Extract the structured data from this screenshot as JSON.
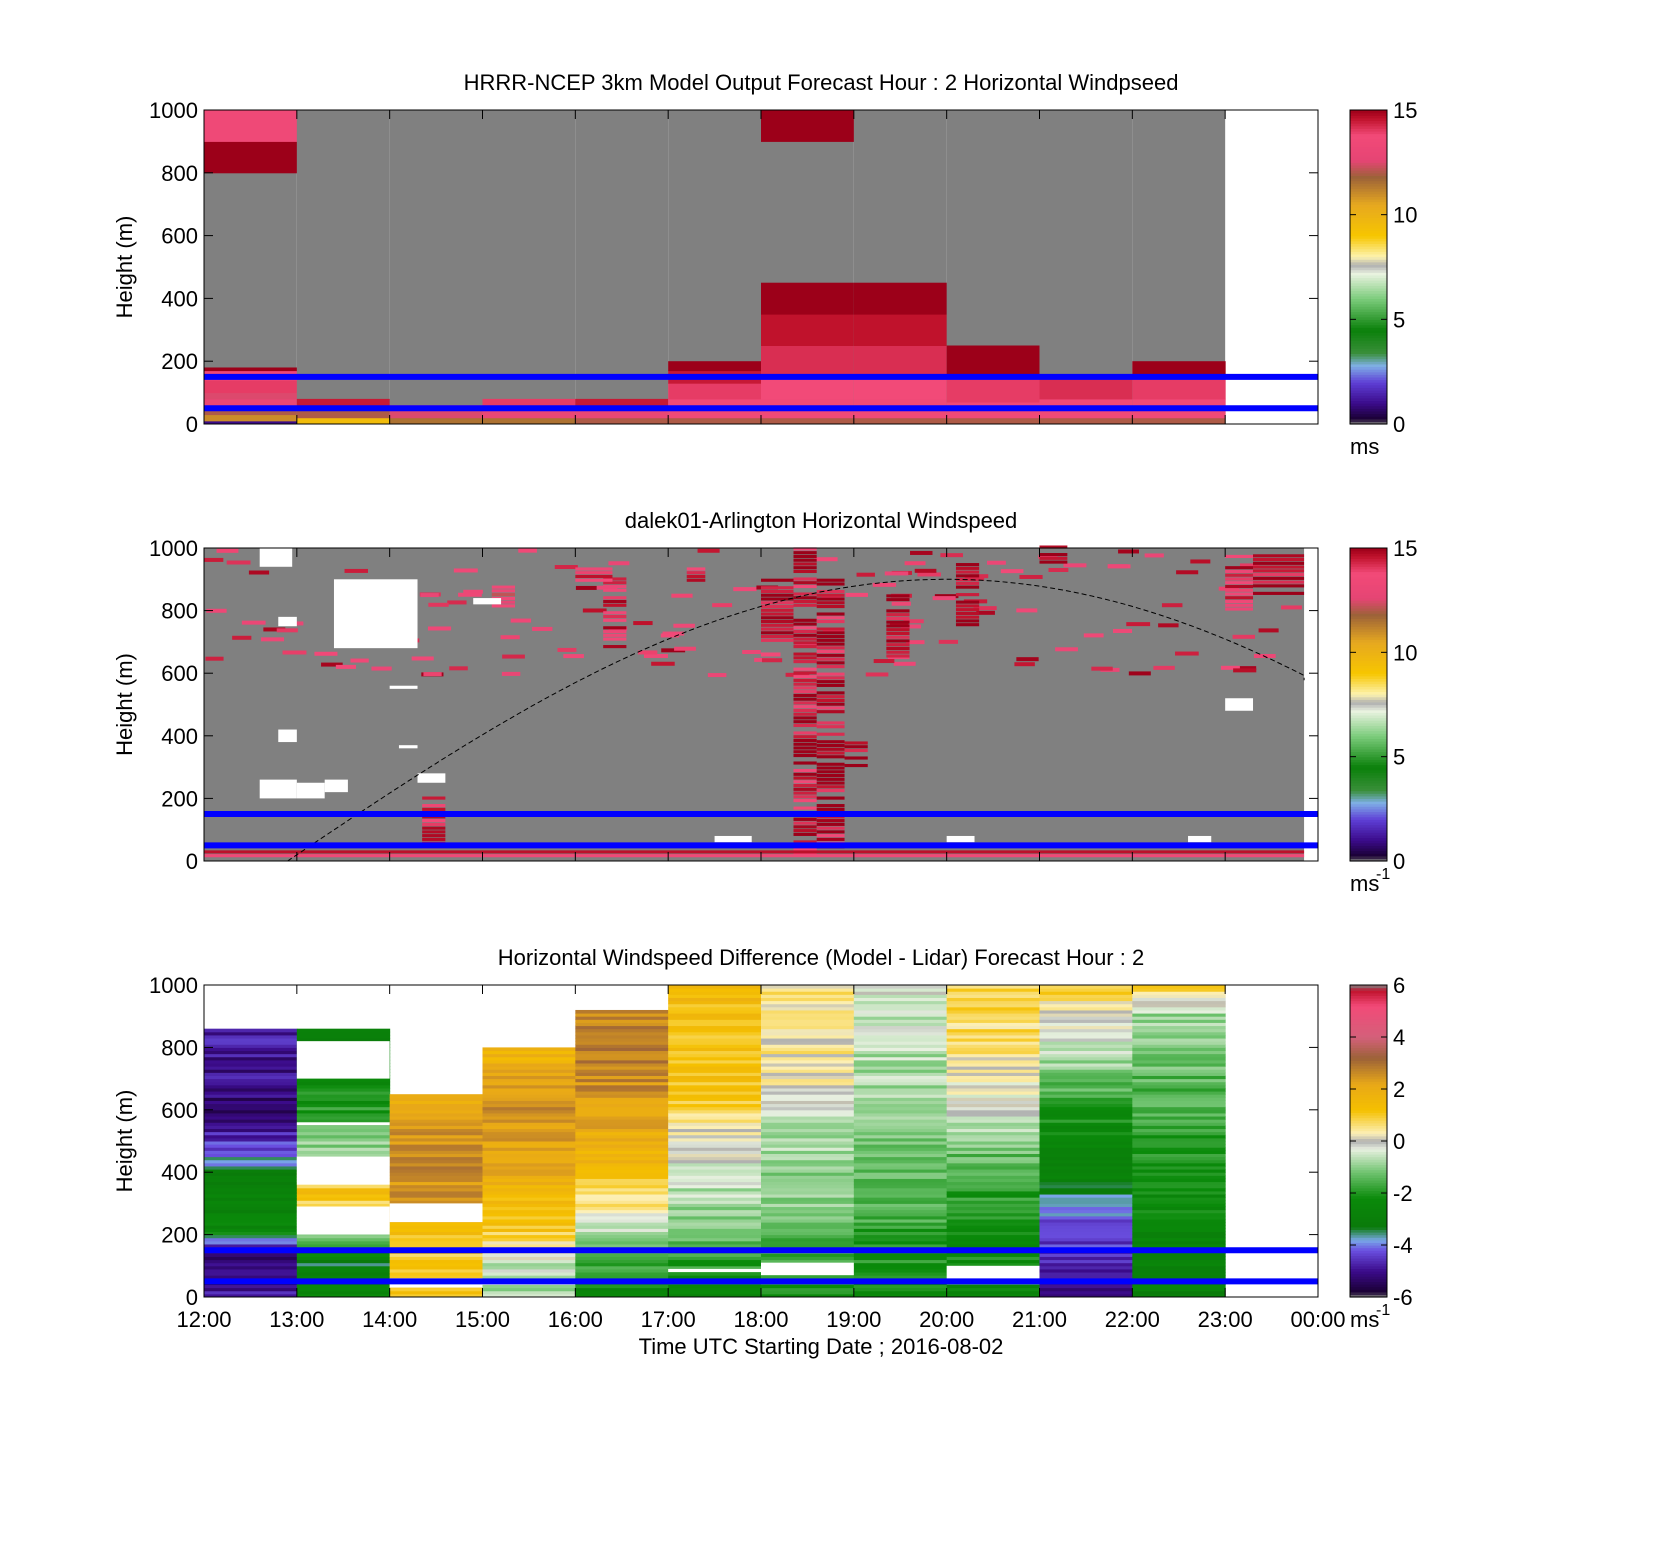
{
  "chart_data": [
    {
      "type": "heatmap",
      "title": "HRRR-NCEP 3km Model Output   Forecast Hour : 2 Horizontal Windpseed",
      "ylabel": "Height (m)",
      "xlabel": "",
      "xlim": [
        12,
        24
      ],
      "ylim": [
        0,
        1000
      ],
      "yticks": [
        "0",
        "200",
        "400",
        "600",
        "800",
        "1000"
      ],
      "xticks": [
        "12:00",
        "13:00",
        "14:00",
        "15:00",
        "16:00",
        "17:00",
        "18:00",
        "19:00",
        "20:00",
        "21:00",
        "22:00",
        "23:00",
        "00:00"
      ],
      "show_xtick_labels": false,
      "colorbar": {
        "ticks": [
          "0",
          "5",
          "10",
          "15"
        ],
        "range": [
          0,
          15
        ],
        "unit": "ms",
        "unit_sup": "",
        "map": "wind"
      },
      "reference_lines": [
        {
          "height": 150,
          "color": "#0000ff"
        },
        {
          "height": 50,
          "color": "#0000ff"
        }
      ],
      "hours": [
        {
          "start": 12,
          "top": 1000,
          "layers": [
            [
              0,
              10,
              1
            ],
            [
              10,
              30,
              11
            ],
            [
              30,
              50,
              12
            ],
            [
              50,
              80,
              13
            ],
            [
              80,
              100,
              12.5
            ],
            [
              100,
              140,
              14
            ],
            [
              140,
              170,
              13.5
            ],
            [
              170,
              180,
              15
            ],
            [
              800,
              900,
              15
            ],
            [
              900,
              1000,
              13.5
            ]
          ]
        },
        {
          "start": 13,
          "top": 1000,
          "layers": [
            [
              0,
              20,
              9.5
            ],
            [
              20,
              50,
              12
            ],
            [
              50,
              80,
              14.5
            ]
          ]
        },
        {
          "start": 14,
          "top": 1000,
          "layers": [
            [
              0,
              20,
              11.5
            ],
            [
              20,
              50,
              12.5
            ],
            [
              50,
              60,
              13.5
            ]
          ]
        },
        {
          "start": 15,
          "top": 1000,
          "layers": [
            [
              0,
              20,
              11.5
            ],
            [
              20,
              50,
              13
            ],
            [
              50,
              80,
              14
            ]
          ]
        },
        {
          "start": 16,
          "top": 1000,
          "layers": [
            [
              0,
              20,
              12
            ],
            [
              20,
              50,
              13
            ],
            [
              50,
              80,
              14.5
            ]
          ]
        },
        {
          "start": 17,
          "top": 1000,
          "layers": [
            [
              0,
              20,
              12
            ],
            [
              20,
              80,
              13.5
            ],
            [
              80,
              130,
              14
            ],
            [
              130,
              170,
              14.5
            ],
            [
              170,
              200,
              15
            ]
          ]
        },
        {
          "start": 18,
          "top": 1000,
          "layers": [
            [
              0,
              20,
              12
            ],
            [
              20,
              80,
              13.5
            ],
            [
              80,
              150,
              13.8
            ],
            [
              150,
              250,
              14.2
            ],
            [
              250,
              350,
              14.6
            ],
            [
              350,
              450,
              15
            ],
            [
              900,
              1000,
              15
            ]
          ]
        },
        {
          "start": 19,
          "top": 1000,
          "layers": [
            [
              0,
              20,
              12
            ],
            [
              20,
              80,
              13.5
            ],
            [
              80,
              150,
              13.8
            ],
            [
              150,
              250,
              14.2
            ],
            [
              250,
              350,
              14.6
            ],
            [
              350,
              450,
              15
            ]
          ]
        },
        {
          "start": 20,
          "top": 1000,
          "layers": [
            [
              0,
              20,
              12
            ],
            [
              20,
              70,
              13.5
            ],
            [
              70,
              150,
              14
            ],
            [
              150,
              250,
              15
            ]
          ]
        },
        {
          "start": 21,
          "top": 1000,
          "layers": [
            [
              0,
              20,
              12
            ],
            [
              20,
              80,
              13.5
            ],
            [
              80,
              150,
              14.2
            ]
          ]
        },
        {
          "start": 22,
          "top": 1000,
          "layers": [
            [
              0,
              20,
              12
            ],
            [
              20,
              80,
              13.5
            ],
            [
              80,
              150,
              14
            ],
            [
              150,
              200,
              15
            ]
          ]
        }
      ],
      "fill_value": null
    },
    {
      "type": "heatmap",
      "title": "dalek01-Arlington  Horizontal Windspeed",
      "ylabel": "Height (m)",
      "xlabel": "",
      "xlim": [
        12,
        24
      ],
      "ylim": [
        0,
        1000
      ],
      "yticks": [
        "0",
        "200",
        "400",
        "600",
        "800",
        "1000"
      ],
      "xticks": [
        "12:00",
        "13:00",
        "14:00",
        "15:00",
        "16:00",
        "17:00",
        "18:00",
        "19:00",
        "20:00",
        "21:00",
        "22:00",
        "23:00",
        "00:00"
      ],
      "show_xtick_labels": false,
      "colorbar": {
        "ticks": [
          "0",
          "5",
          "10",
          "15"
        ],
        "range": [
          0,
          15
        ],
        "unit": "ms",
        "unit_sup": "-1",
        "map": "wind"
      },
      "reference_lines": [
        {
          "height": 150,
          "color": "#0000ff"
        },
        {
          "height": 50,
          "color": "#0000ff"
        }
      ],
      "background_value": "missing",
      "data_extent_hours": [
        12,
        23.85
      ],
      "features": [
        [
          18.35,
          18.6,
          20,
          1000,
          14.5
        ],
        [
          18.6,
          18.9,
          40,
          900,
          14.8
        ],
        [
          18.9,
          19.15,
          300,
          380,
          15
        ],
        [
          16.3,
          16.55,
          680,
          900,
          14
        ],
        [
          18.0,
          18.35,
          700,
          900,
          15
        ],
        [
          19.35,
          19.6,
          650,
          850,
          15
        ],
        [
          20.1,
          20.35,
          750,
          950,
          15
        ],
        [
          23.0,
          23.3,
          800,
          980,
          14
        ],
        [
          23.3,
          23.85,
          850,
          980,
          15
        ],
        [
          15.1,
          15.35,
          810,
          880,
          13
        ],
        [
          21.0,
          21.3,
          950,
          1000,
          15
        ],
        [
          17.2,
          17.4,
          880,
          930,
          14
        ],
        [
          12.0,
          23.85,
          0,
          30,
          13.8
        ],
        [
          14.35,
          14.6,
          40,
          200,
          14.5
        ],
        [
          16.0,
          16.4,
          880,
          930,
          14
        ]
      ],
      "gaps": [
        [
          12.6,
          13.0,
          200,
          260
        ],
        [
          13.0,
          13.3,
          200,
          250
        ],
        [
          13.3,
          13.55,
          220,
          260
        ],
        [
          13.4,
          14.3,
          680,
          900
        ],
        [
          14.3,
          14.6,
          250,
          280
        ],
        [
          12.8,
          13.0,
          380,
          420
        ],
        [
          12.8,
          13.0,
          750,
          780
        ],
        [
          14.0,
          14.3,
          550,
          560
        ],
        [
          14.1,
          14.3,
          360,
          370
        ],
        [
          17.5,
          17.9,
          60,
          80
        ],
        [
          20.0,
          20.3,
          60,
          80
        ],
        [
          22.6,
          22.85,
          60,
          80
        ],
        [
          23.0,
          23.3,
          480,
          520
        ],
        [
          12.6,
          12.95,
          940,
          1000
        ],
        [
          14.9,
          15.2,
          820,
          840
        ]
      ],
      "sine_curve": {
        "color": "#000000",
        "style": "dashed",
        "peak_height": 900,
        "peak_hour": 20.0,
        "start_hour": 12.9,
        "end_hour": 24.0
      }
    },
    {
      "type": "heatmap",
      "title": "Horizontal Windspeed Difference (Model - Lidar) Forecast Hour : 2",
      "ylabel": "Height (m)",
      "xlabel": "Time UTC  Starting Date ; 2016-08-02",
      "xlim": [
        12,
        24
      ],
      "ylim": [
        0,
        1000
      ],
      "yticks": [
        "0",
        "200",
        "400",
        "600",
        "800",
        "1000"
      ],
      "xticks": [
        "12:00",
        "13:00",
        "14:00",
        "15:00",
        "16:00",
        "17:00",
        "18:00",
        "19:00",
        "20:00",
        "21:00",
        "22:00",
        "23:00",
        "00:00"
      ],
      "show_xtick_labels": true,
      "colorbar": {
        "ticks": [
          "-6",
          "-4",
          "-2",
          "0",
          "2",
          "4",
          "6"
        ],
        "range": [
          -6,
          6
        ],
        "unit": "ms",
        "unit_sup": "-1",
        "map": "diff"
      },
      "reference_lines": [
        {
          "height": 150,
          "color": "#0000ff"
        },
        {
          "height": 50,
          "color": "#0000ff"
        }
      ],
      "hours": [
        {
          "start": 12,
          "top": 860,
          "profile": [
            [
              0,
              -4.8
            ],
            [
              80,
              -5.2
            ],
            [
              150,
              -5.5
            ],
            [
              200,
              -2.5
            ],
            [
              300,
              -2.8
            ],
            [
              380,
              -3
            ],
            [
              430,
              -3.8
            ],
            [
              500,
              -4.5
            ],
            [
              600,
              -5.4
            ],
            [
              700,
              -5
            ],
            [
              860,
              -4.8
            ]
          ]
        },
        {
          "start": 13,
          "top": 860,
          "profile": [
            [
              0,
              -2.5
            ],
            [
              100,
              -3.2
            ],
            [
              200,
              -1
            ],
            [
              330,
              1.5
            ],
            [
              420,
              -0.5
            ],
            [
              550,
              -1.5
            ],
            [
              700,
              -2.5
            ],
            [
              860,
              -2.8
            ]
          ]
        },
        {
          "start": 14,
          "top": 650,
          "profile": [
            [
              0,
              1.2
            ],
            [
              100,
              1.0
            ],
            [
              200,
              1.2
            ],
            [
              330,
              2.5
            ],
            [
              450,
              2.8
            ],
            [
              550,
              2.2
            ],
            [
              650,
              1.8
            ]
          ]
        },
        {
          "start": 15,
          "top": 800,
          "profile": [
            [
              0,
              -0.8
            ],
            [
              100,
              -0.5
            ],
            [
              200,
              1.0
            ],
            [
              400,
              2.0
            ],
            [
              600,
              2.6
            ],
            [
              800,
              1.5
            ]
          ]
        },
        {
          "start": 16,
          "top": 920,
          "profile": [
            [
              0,
              -2.5
            ],
            [
              150,
              -1.2
            ],
            [
              250,
              0
            ],
            [
              400,
              1.5
            ],
            [
              600,
              2.3
            ],
            [
              800,
              3.0
            ],
            [
              920,
              2.5
            ]
          ]
        },
        {
          "start": 17,
          "top": 1000,
          "profile": [
            [
              0,
              -2.5
            ],
            [
              150,
              -1.5
            ],
            [
              300,
              -0.8
            ],
            [
              450,
              -0.2
            ],
            [
              550,
              0.5
            ],
            [
              700,
              1.2
            ],
            [
              900,
              1.3
            ],
            [
              1000,
              1.5
            ]
          ]
        },
        {
          "start": 18,
          "top": 1000,
          "profile": [
            [
              0,
              -2.0
            ],
            [
              150,
              -1.5
            ],
            [
              300,
              -1.0
            ],
            [
              500,
              -0.8
            ],
            [
              700,
              0.2
            ],
            [
              850,
              0.5
            ],
            [
              1000,
              0.6
            ]
          ]
        },
        {
          "start": 19,
          "top": 1000,
          "profile": [
            [
              0,
              -2.3
            ],
            [
              150,
              -2.0
            ],
            [
              300,
              -1.5
            ],
            [
              500,
              -1.2
            ],
            [
              700,
              -0.8
            ],
            [
              900,
              -0.5
            ],
            [
              1000,
              -0.3
            ]
          ]
        },
        {
          "start": 20,
          "top": 1000,
          "profile": [
            [
              0,
              -2.5
            ],
            [
              150,
              -2.2
            ],
            [
              300,
              -2.0
            ],
            [
              450,
              -1.3
            ],
            [
              600,
              -0.3
            ],
            [
              800,
              0.6
            ],
            [
              1000,
              1.0
            ]
          ]
        },
        {
          "start": 21,
          "top": 1000,
          "profile": [
            [
              0,
              -5.0
            ],
            [
              150,
              -4.5
            ],
            [
              280,
              -4.0
            ],
            [
              350,
              -3.0
            ],
            [
              450,
              -2.8
            ],
            [
              600,
              -2.0
            ],
            [
              750,
              -0.8
            ],
            [
              900,
              0.3
            ],
            [
              1000,
              1.0
            ]
          ]
        },
        {
          "start": 22,
          "top": 1000,
          "profile": [
            [
              0,
              -2.8
            ],
            [
              150,
              -2.6
            ],
            [
              300,
              -2.3
            ],
            [
              500,
              -1.8
            ],
            [
              700,
              -1.4
            ],
            [
              900,
              -0.8
            ],
            [
              1000,
              1.0
            ]
          ]
        }
      ],
      "gaps": [
        [
          13.0,
          14.0,
          700,
          820
        ],
        [
          13.0,
          14.0,
          360,
          450
        ],
        [
          13.0,
          14.0,
          200,
          290
        ],
        [
          14.0,
          15.0,
          240,
          300
        ],
        [
          14.0,
          15.0,
          30,
          60
        ],
        [
          17.0,
          18.0,
          80,
          90
        ],
        [
          18.0,
          19.0,
          70,
          110
        ],
        [
          20.0,
          21.0,
          40,
          100
        ],
        [
          13.0,
          14.0,
          550,
          560
        ]
      ]
    }
  ]
}
